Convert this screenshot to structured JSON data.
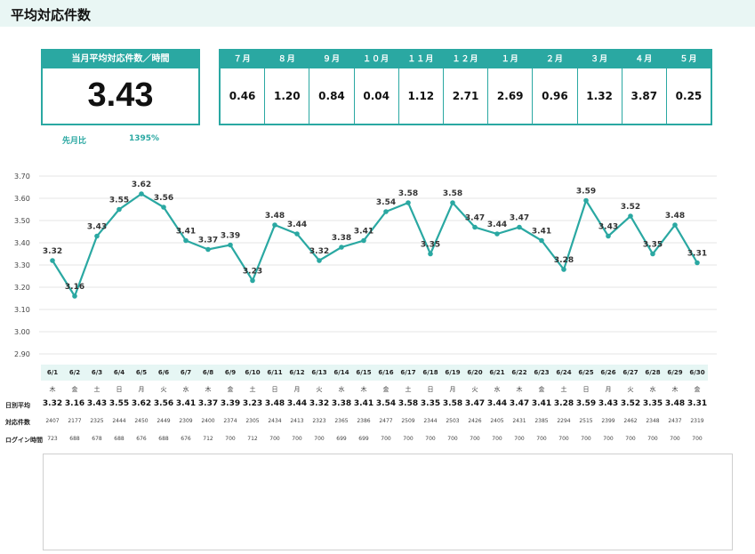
{
  "page": {
    "title": "平均対応件数"
  },
  "kpi": {
    "label": "当月平均対応件数／時間",
    "value": "3.43"
  },
  "ratio": {
    "label": "先月比",
    "value": "1395%"
  },
  "monthly": [
    {
      "month": "７月",
      "value": "0.46"
    },
    {
      "month": "８月",
      "value": "1.20"
    },
    {
      "month": "９月",
      "value": "0.84"
    },
    {
      "month": "１０月",
      "value": "0.04"
    },
    {
      "month": "１１月",
      "value": "1.12"
    },
    {
      "month": "１２月",
      "value": "2.71"
    },
    {
      "month": "１月",
      "value": "2.69"
    },
    {
      "month": "２月",
      "value": "0.96"
    },
    {
      "month": "３月",
      "value": "1.32"
    },
    {
      "month": "４月",
      "value": "3.87"
    },
    {
      "month": "５月",
      "value": "0.25"
    }
  ],
  "row_labels": {
    "daily_avg": "日別平均",
    "count": "対応件数",
    "login": "ログイン時間"
  },
  "days": [
    {
      "date": "6/1",
      "dow": "木",
      "avg": "3.32",
      "count": "2407",
      "login": "723"
    },
    {
      "date": "6/2",
      "dow": "金",
      "avg": "3.16",
      "count": "2177",
      "login": "688"
    },
    {
      "date": "6/3",
      "dow": "土",
      "avg": "3.43",
      "count": "2325",
      "login": "678"
    },
    {
      "date": "6/4",
      "dow": "日",
      "avg": "3.55",
      "count": "2444",
      "login": "688"
    },
    {
      "date": "6/5",
      "dow": "月",
      "avg": "3.62",
      "count": "2450",
      "login": "676"
    },
    {
      "date": "6/6",
      "dow": "火",
      "avg": "3.56",
      "count": "2449",
      "login": "688"
    },
    {
      "date": "6/7",
      "dow": "水",
      "avg": "3.41",
      "count": "2309",
      "login": "676"
    },
    {
      "date": "6/8",
      "dow": "木",
      "avg": "3.37",
      "count": "2400",
      "login": "712"
    },
    {
      "date": "6/9",
      "dow": "金",
      "avg": "3.39",
      "count": "2374",
      "login": "700"
    },
    {
      "date": "6/10",
      "dow": "土",
      "avg": "3.23",
      "count": "2305",
      "login": "712"
    },
    {
      "date": "6/11",
      "dow": "日",
      "avg": "3.48",
      "count": "2434",
      "login": "700"
    },
    {
      "date": "6/12",
      "dow": "月",
      "avg": "3.44",
      "count": "2413",
      "login": "700"
    },
    {
      "date": "6/13",
      "dow": "火",
      "avg": "3.32",
      "count": "2323",
      "login": "700"
    },
    {
      "date": "6/14",
      "dow": "水",
      "avg": "3.38",
      "count": "2365",
      "login": "699"
    },
    {
      "date": "6/15",
      "dow": "木",
      "avg": "3.41",
      "count": "2386",
      "login": "699"
    },
    {
      "date": "6/16",
      "dow": "金",
      "avg": "3.54",
      "count": "2477",
      "login": "700"
    },
    {
      "date": "6/17",
      "dow": "土",
      "avg": "3.58",
      "count": "2509",
      "login": "700"
    },
    {
      "date": "6/18",
      "dow": "日",
      "avg": "3.35",
      "count": "2344",
      "login": "700"
    },
    {
      "date": "6/19",
      "dow": "月",
      "avg": "3.58",
      "count": "2503",
      "login": "700"
    },
    {
      "date": "6/20",
      "dow": "火",
      "avg": "3.47",
      "count": "2426",
      "login": "700"
    },
    {
      "date": "6/21",
      "dow": "水",
      "avg": "3.44",
      "count": "2405",
      "login": "700"
    },
    {
      "date": "6/22",
      "dow": "木",
      "avg": "3.47",
      "count": "2431",
      "login": "700"
    },
    {
      "date": "6/23",
      "dow": "金",
      "avg": "3.41",
      "count": "2385",
      "login": "700"
    },
    {
      "date": "6/24",
      "dow": "土",
      "avg": "3.28",
      "count": "2294",
      "login": "700"
    },
    {
      "date": "6/25",
      "dow": "日",
      "avg": "3.59",
      "count": "2515",
      "login": "700"
    },
    {
      "date": "6/26",
      "dow": "月",
      "avg": "3.43",
      "count": "2399",
      "login": "700"
    },
    {
      "date": "6/27",
      "dow": "火",
      "avg": "3.52",
      "count": "2462",
      "login": "700"
    },
    {
      "date": "6/28",
      "dow": "水",
      "avg": "3.35",
      "count": "2348",
      "login": "700"
    },
    {
      "date": "6/29",
      "dow": "木",
      "avg": "3.48",
      "count": "2437",
      "login": "700"
    },
    {
      "date": "6/30",
      "dow": "金",
      "avg": "3.31",
      "count": "2319",
      "login": "700"
    }
  ],
  "chart_data": {
    "type": "line",
    "title": "",
    "xlabel": "",
    "ylabel": "",
    "ylim": [
      2.9,
      3.7
    ],
    "yticks": [
      "2.90",
      "3.00",
      "3.10",
      "3.20",
      "3.30",
      "3.40",
      "3.50",
      "3.60",
      "3.70"
    ],
    "grid": true,
    "line_color": "#2aa8a2",
    "categories": [
      "6/1",
      "6/2",
      "6/3",
      "6/4",
      "6/5",
      "6/6",
      "6/7",
      "6/8",
      "6/9",
      "6/10",
      "6/11",
      "6/12",
      "6/13",
      "6/14",
      "6/15",
      "6/16",
      "6/17",
      "6/18",
      "6/19",
      "6/20",
      "6/21",
      "6/22",
      "6/23",
      "6/24",
      "6/25",
      "6/26",
      "6/27",
      "6/28",
      "6/29",
      "6/30"
    ],
    "values": [
      3.32,
      3.16,
      3.43,
      3.55,
      3.62,
      3.56,
      3.41,
      3.37,
      3.39,
      3.23,
      3.48,
      3.44,
      3.32,
      3.38,
      3.41,
      3.54,
      3.58,
      3.35,
      3.58,
      3.47,
      3.44,
      3.47,
      3.41,
      3.28,
      3.59,
      3.43,
      3.52,
      3.35,
      3.48,
      3.31
    ]
  }
}
